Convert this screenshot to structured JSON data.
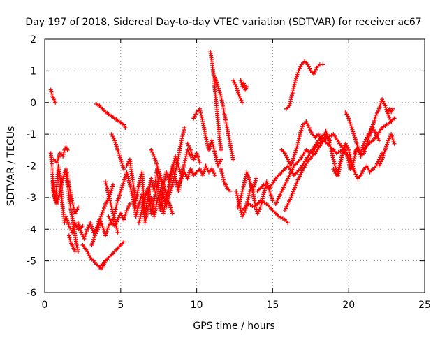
{
  "chart_data": {
    "type": "scatter",
    "title": "Day 197 of 2018, Sidereal Day-to-day VTEC variation (SDTVAR) for receiver ac67",
    "xlabel": "GPS time / hours",
    "ylabel": "SDTVAR / TECUs",
    "xlim": [
      0,
      25
    ],
    "ylim": [
      -6,
      2
    ],
    "x_ticks": [
      "0",
      "5",
      "10",
      "15",
      "20",
      "25"
    ],
    "y_ticks": [
      "-6",
      "-5",
      "-4",
      "-3",
      "-2",
      "-1",
      "0",
      "1",
      "2"
    ],
    "grid": true,
    "marker": "plus",
    "color": "#ff0000",
    "series": [
      {
        "x": [
          0.4,
          0.5,
          0.6,
          0.7
        ],
        "y": [
          0.4,
          0.2,
          0.1,
          0.0
        ]
      },
      {
        "x": [
          0.4,
          0.5,
          0.6,
          0.7,
          0.8,
          0.9,
          1.0,
          1.1,
          1.2,
          1.3,
          1.4,
          1.6,
          1.8,
          2.0,
          2.2,
          2.5
        ],
        "y": [
          -1.6,
          -2.2,
          -2.8,
          -3.1,
          -2.6,
          -2.0,
          -2.3,
          -2.9,
          -3.4,
          -3.8,
          -3.6,
          -3.9,
          -4.1,
          -3.8,
          -4.0,
          -3.9
        ]
      },
      {
        "x": [
          0.5,
          0.6,
          0.8,
          1.0,
          1.2,
          1.4,
          1.6,
          1.8,
          2.0,
          2.2
        ],
        "y": [
          -2.5,
          -2.9,
          -3.2,
          -2.8,
          -2.4,
          -2.1,
          -2.6,
          -3.1,
          -3.5,
          -3.3
        ]
      },
      {
        "x": [
          0.6,
          0.8,
          1.0,
          1.2,
          1.3,
          1.4,
          1.5
        ],
        "y": [
          -1.8,
          -1.9,
          -1.6,
          -1.7,
          -1.5,
          -1.4,
          -1.5
        ]
      },
      {
        "x": [
          1.6,
          1.7,
          1.8,
          1.9,
          2.0
        ],
        "y": [
          -4.2,
          -4.4,
          -4.5,
          -4.6,
          -4.7
        ]
      },
      {
        "x": [
          1.4,
          1.5,
          1.6,
          1.7,
          1.8,
          1.9,
          2.0,
          2.1,
          2.2
        ],
        "y": [
          -2.2,
          -2.6,
          -3.0,
          -3.3,
          -3.6,
          -3.9,
          -4.2,
          -4.5,
          -4.7
        ]
      },
      {
        "x": [
          2.2,
          2.4,
          2.6,
          2.8,
          3.0,
          3.2,
          3.4,
          3.6,
          3.8,
          4.0,
          4.2,
          4.5
        ],
        "y": [
          -3.8,
          -4.1,
          -4.3,
          -4.0,
          -3.8,
          -4.1,
          -4.0,
          -3.7,
          -3.9,
          -4.2,
          -3.9,
          -3.7
        ]
      },
      {
        "x": [
          2.5,
          2.8,
          3.0,
          3.2,
          3.4,
          3.6,
          3.7,
          3.8,
          3.9,
          4.0
        ],
        "y": [
          -4.5,
          -4.7,
          -4.9,
          -5.0,
          -5.1,
          -5.2,
          -5.25,
          -5.2,
          -5.1,
          -5.0
        ]
      },
      {
        "x": [
          3.6,
          3.8,
          4.0,
          4.2,
          4.4,
          4.6,
          4.8,
          5.0,
          5.2
        ],
        "y": [
          -5.2,
          -5.1,
          -5.0,
          -4.9,
          -4.8,
          -4.7,
          -4.6,
          -4.5,
          -4.4
        ]
      },
      {
        "x": [
          3.1,
          3.3,
          3.5,
          3.7,
          4.0,
          4.3,
          4.5
        ],
        "y": [
          -4.5,
          -4.2,
          -4.0,
          -3.6,
          -3.2,
          -2.9,
          -2.6
        ]
      },
      {
        "x": [
          3.4,
          3.6,
          3.8,
          4.0,
          4.3,
          4.6,
          4.9,
          5.2,
          5.3
        ],
        "y": [
          -0.05,
          -0.1,
          -0.2,
          -0.3,
          -0.4,
          -0.5,
          -0.6,
          -0.7,
          -0.8
        ]
      },
      {
        "x": [
          4.0,
          4.1,
          4.2,
          4.3,
          4.4,
          4.5,
          4.6,
          4.7,
          4.8
        ],
        "y": [
          -2.5,
          -2.7,
          -2.9,
          -3.1,
          -3.3,
          -3.5,
          -3.7,
          -3.9,
          -4.1
        ]
      },
      {
        "x": [
          4.2,
          4.4,
          4.6,
          4.8,
          5.0,
          5.2,
          5.4,
          5.6
        ],
        "y": [
          -3.6,
          -3.8,
          -3.9,
          -3.7,
          -3.5,
          -3.7,
          -3.4,
          -3.2
        ]
      },
      {
        "x": [
          4.4,
          4.6,
          4.8,
          5.0,
          5.2
        ],
        "y": [
          -1.0,
          -1.2,
          -1.5,
          -1.8,
          -2.1
        ]
      },
      {
        "x": [
          4.6,
          4.8,
          5.0,
          5.2,
          5.4,
          5.6,
          5.8,
          6.0
        ],
        "y": [
          -3.5,
          -3.1,
          -2.8,
          -2.5,
          -2.2,
          -2.6,
          -3.0,
          -3.3
        ]
      },
      {
        "x": [
          5.4,
          5.6,
          5.8,
          6.0,
          6.2,
          6.4,
          6.6,
          6.8,
          7.0,
          7.2,
          7.4,
          7.6,
          7.8,
          8.0
        ],
        "y": [
          -2.0,
          -1.8,
          -2.5,
          -3.1,
          -2.6,
          -2.2,
          -3.5,
          -3.0,
          -2.4,
          -2.8,
          -2.1,
          -3.4,
          -2.7,
          -2.2
        ]
      },
      {
        "x": [
          5.8,
          6.0,
          6.2,
          6.4,
          6.6,
          6.8,
          7.0,
          7.2,
          7.4,
          7.6,
          7.8,
          8.0,
          8.2
        ],
        "y": [
          -3.0,
          -3.6,
          -3.2,
          -2.9,
          -3.8,
          -3.3,
          -3.0,
          -3.6,
          -3.1,
          -2.8,
          -3.5,
          -3.0,
          -2.6
        ]
      },
      {
        "x": [
          6.2,
          6.4,
          6.6,
          6.8,
          7.0,
          7.2,
          7.4,
          7.6,
          7.8,
          8.0,
          8.2,
          8.4,
          8.6,
          8.8,
          9.0
        ],
        "y": [
          -3.8,
          -3.4,
          -3.0,
          -2.7,
          -3.5,
          -3.1,
          -2.6,
          -2.3,
          -2.9,
          -3.3,
          -2.6,
          -2.0,
          -2.4,
          -2.8,
          -2.3
        ]
      },
      {
        "x": [
          7.0,
          7.2,
          7.4,
          7.6,
          7.8,
          8.0,
          8.2,
          8.4
        ],
        "y": [
          -1.5,
          -1.7,
          -2.0,
          -2.3,
          -2.6,
          -2.9,
          -3.2,
          -3.5
        ]
      },
      {
        "x": [
          8.0,
          8.2,
          8.4,
          8.6,
          8.8,
          9.0,
          9.2,
          9.4,
          9.6
        ],
        "y": [
          -2.2,
          -2.5,
          -2.1,
          -1.7,
          -2.0,
          -2.3,
          -1.9,
          -1.5,
          -1.7
        ]
      },
      {
        "x": [
          8.2,
          8.4,
          8.6,
          8.8,
          9.0,
          9.2
        ],
        "y": [
          -2.9,
          -2.6,
          -2.2,
          -1.7,
          -1.2,
          -0.8
        ]
      },
      {
        "x": [
          8.8,
          9.0,
          9.2,
          9.4,
          9.6,
          9.8,
          10.0,
          10.2,
          10.4,
          10.6,
          10.8,
          11.0,
          11.2
        ],
        "y": [
          -2.6,
          -2.4,
          -2.2,
          -2.4,
          -2.1,
          -2.3,
          -2.2,
          -2.1,
          -2.3,
          -2.0,
          -2.2,
          -2.1,
          -2.3
        ]
      },
      {
        "x": [
          9.4,
          9.6,
          9.8,
          10.0,
          10.2
        ],
        "y": [
          -1.3,
          -1.5,
          -1.8,
          -1.6,
          -1.9
        ]
      },
      {
        "x": [
          9.8,
          10.0,
          10.2,
          10.4,
          10.6,
          10.8,
          11.0,
          11.2,
          11.4,
          11.6
        ],
        "y": [
          -0.5,
          -0.3,
          -0.2,
          -0.6,
          -1.1,
          -1.5,
          -1.2,
          -1.6,
          -2.0,
          -1.8
        ]
      },
      {
        "x": [
          10.9,
          11.0,
          11.1,
          11.2,
          11.3,
          11.4,
          11.5,
          11.6
        ],
        "y": [
          1.6,
          1.3,
          0.9,
          0.4,
          -0.1,
          -0.6,
          -1.1,
          -1.5
        ]
      },
      {
        "x": [
          11.2,
          11.4,
          11.6,
          11.8,
          12.0,
          12.2,
          12.4
        ],
        "y": [
          0.8,
          0.5,
          0.2,
          -0.3,
          -0.8,
          -1.3,
          -1.8
        ]
      },
      {
        "x": [
          11.6,
          11.7,
          11.8,
          11.9,
          12.0,
          12.2
        ],
        "y": [
          -2.1,
          -2.3,
          -2.5,
          -2.6,
          -2.7,
          -2.8
        ]
      },
      {
        "x": [
          12.4,
          12.6,
          12.8,
          13.0
        ],
        "y": [
          0.7,
          0.5,
          0.2,
          0.0
        ]
      },
      {
        "x": [
          12.9,
          13.0,
          13.1,
          13.2,
          13.3
        ],
        "y": [
          0.7,
          0.5,
          0.6,
          0.4,
          0.5
        ]
      },
      {
        "x": [
          12.6,
          12.8,
          13.0,
          13.2,
          13.4,
          13.6,
          13.8,
          14.0,
          14.2,
          14.4,
          14.6,
          14.8,
          15.0
        ],
        "y": [
          -2.8,
          -3.2,
          -3.6,
          -3.4,
          -3.0,
          -2.6,
          -3.1,
          -3.5,
          -3.3,
          -2.9,
          -2.5,
          -2.8,
          -3.1
        ]
      },
      {
        "x": [
          12.7,
          12.9,
          13.1,
          13.3,
          13.5,
          13.7,
          13.9
        ],
        "y": [
          -3.3,
          -3.0,
          -2.6,
          -2.2,
          -2.5,
          -2.8,
          -2.4
        ]
      },
      {
        "x": [
          13.0,
          13.4,
          13.8,
          14.2,
          14.6,
          15.0,
          15.4,
          15.8,
          16.0
        ],
        "y": [
          -3.4,
          -3.2,
          -3.3,
          -3.1,
          -3.2,
          -3.4,
          -3.6,
          -3.7,
          -3.8
        ]
      },
      {
        "x": [
          14.0,
          14.4,
          14.8,
          15.2,
          15.6,
          16.0,
          16.4,
          16.8,
          17.2,
          17.6,
          18.0,
          18.4,
          18.8
        ],
        "y": [
          -2.8,
          -2.6,
          -2.7,
          -2.4,
          -2.2,
          -2.0,
          -2.3,
          -2.1,
          -1.8,
          -1.5,
          -1.2,
          -1.0,
          -1.2
        ]
      },
      {
        "x": [
          15.2,
          15.6,
          16.0,
          16.4,
          16.8,
          17.2,
          17.6,
          18.0,
          18.4,
          18.8,
          19.2,
          19.6,
          20.0
        ],
        "y": [
          -3.2,
          -2.8,
          -2.4,
          -2.0,
          -1.8,
          -1.5,
          -1.6,
          -1.3,
          -1.2,
          -1.4,
          -1.6,
          -1.5,
          -1.7
        ]
      },
      {
        "x": [
          15.6,
          15.8,
          16.0,
          16.2,
          16.4,
          16.6,
          16.8,
          17.0,
          17.2,
          17.4,
          17.6,
          17.8,
          18.0,
          18.2,
          18.4
        ],
        "y": [
          -1.5,
          -1.6,
          -1.8,
          -2.0,
          -1.7,
          -1.4,
          -1.0,
          -0.7,
          -0.6,
          -0.8,
          -1.0,
          -1.1,
          -1.0,
          -1.2,
          -1.1
        ]
      },
      {
        "x": [
          15.9,
          16.1,
          16.3,
          16.5,
          16.7,
          16.9,
          17.1,
          17.3,
          17.5,
          17.7,
          17.9,
          18.1,
          18.3
        ],
        "y": [
          -0.2,
          -0.1,
          0.3,
          0.7,
          1.0,
          1.2,
          1.3,
          1.2,
          1.0,
          0.9,
          1.1,
          1.2,
          1.2
        ]
      },
      {
        "x": [
          15.8,
          16.2,
          16.6,
          17.0,
          17.4,
          17.8,
          18.2,
          18.6,
          19.0,
          19.4,
          19.8
        ],
        "y": [
          -3.4,
          -3.0,
          -2.5,
          -2.1,
          -1.8,
          -1.6,
          -1.3,
          -1.1,
          -1.0,
          -1.3,
          -1.6
        ]
      },
      {
        "x": [
          18.5,
          18.7,
          18.9,
          19.1,
          19.3,
          19.5,
          19.7,
          19.9,
          20.1,
          20.3,
          20.5
        ],
        "y": [
          -0.9,
          -1.2,
          -1.6,
          -2.0,
          -2.3,
          -1.8,
          -1.4,
          -1.7,
          -2.1,
          -1.9,
          -1.5
        ]
      },
      {
        "x": [
          19.0,
          19.2,
          19.4,
          19.6,
          19.8,
          20.0,
          20.2,
          20.4
        ],
        "y": [
          -2.1,
          -2.3,
          -2.0,
          -1.6,
          -1.3,
          -1.5,
          -1.9,
          -2.2
        ]
      },
      {
        "x": [
          19.8,
          20.0,
          20.2,
          20.4,
          20.6,
          20.8,
          21.0,
          21.2,
          21.4,
          21.6,
          21.8,
          22.0
        ],
        "y": [
          -0.3,
          -0.5,
          -0.8,
          -1.1,
          -1.4,
          -1.7,
          -1.6,
          -1.3,
          -1.0,
          -0.8,
          -1.0,
          -1.2
        ]
      },
      {
        "x": [
          20.0,
          20.2,
          20.4,
          20.6,
          20.8,
          21.0,
          21.2,
          21.4,
          21.6,
          21.8,
          22.0,
          22.2
        ],
        "y": [
          -1.7,
          -2.0,
          -2.2,
          -2.4,
          -2.3,
          -2.1,
          -2.0,
          -2.2,
          -2.1,
          -2.0,
          -1.8,
          -1.6
        ]
      },
      {
        "x": [
          20.4,
          20.6,
          20.8,
          21.0,
          21.2,
          21.4,
          21.6,
          21.8,
          22.0,
          22.2,
          22.4,
          22.6,
          22.8
        ],
        "y": [
          -1.6,
          -1.4,
          -1.6,
          -1.3,
          -1.1,
          -0.9,
          -0.7,
          -0.4,
          -0.2,
          0.1,
          -0.1,
          -0.4,
          -0.6
        ]
      },
      {
        "x": [
          21.0,
          21.3,
          21.6,
          21.9,
          22.2,
          22.5,
          22.8,
          23.0
        ],
        "y": [
          -1.5,
          -1.3,
          -1.2,
          -1.0,
          -0.8,
          -0.7,
          -0.6,
          -0.5
        ]
      },
      {
        "x": [
          22.0,
          22.2,
          22.4,
          22.6,
          22.8,
          23.0
        ],
        "y": [
          -2.0,
          -1.8,
          -1.5,
          -1.2,
          -1.0,
          -1.3
        ]
      },
      {
        "x": [
          22.6,
          22.7,
          22.8,
          22.9
        ],
        "y": [
          -0.3,
          -0.2,
          -0.3,
          -0.2
        ]
      }
    ]
  }
}
